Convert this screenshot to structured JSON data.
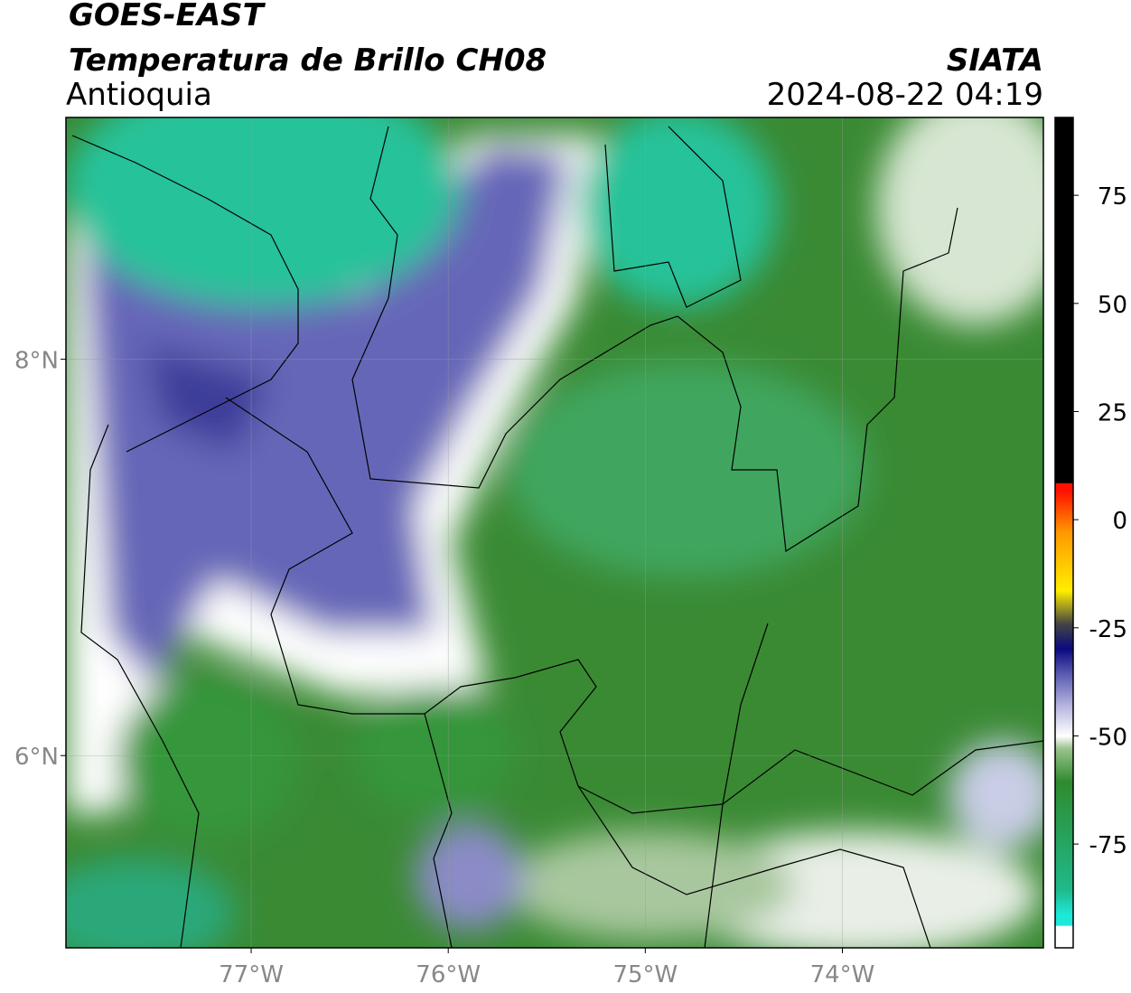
{
  "header": {
    "title": "GOES-EAST",
    "subtitle": "Temperatura de Brillo CH08",
    "region": "Antioquia",
    "source": "SIATA",
    "datetime": "2024-08-22 04:19"
  },
  "map": {
    "xlim": [
      -77.94,
      -72.98
    ],
    "ylim": [
      5.03,
      9.22
    ],
    "xticks": [
      {
        "value": -77,
        "label": "77°W"
      },
      {
        "value": -76,
        "label": "76°W"
      },
      {
        "value": -75,
        "label": "75°W"
      },
      {
        "value": -74,
        "label": "74°W"
      }
    ],
    "yticks": [
      {
        "value": 8,
        "label": "8°N"
      },
      {
        "value": 6,
        "label": "6°N"
      }
    ],
    "grid": true
  },
  "colorbar": {
    "lim": [
      -99,
      93
    ],
    "ticks": [
      75,
      50,
      25,
      0,
      -25,
      -50,
      -75
    ]
  }
}
